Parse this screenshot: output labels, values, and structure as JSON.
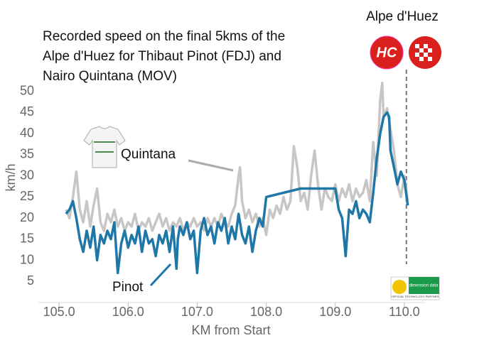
{
  "chart_data": {
    "type": "line",
    "title": [
      "Recorded speed on the final 5kms of the",
      "Alpe d'Huez for Thibaut Pinot (FDJ) and",
      "Nairo Quintana (MOV)"
    ],
    "x_label": "KM from Start",
    "y_label": "km/h",
    "xlim": [
      104.7,
      110.3
    ],
    "ylim": [
      0,
      55
    ],
    "xticks": [
      {
        "value": 105,
        "label": "105.0"
      },
      {
        "value": 106,
        "label": "106.0"
      },
      {
        "value": 107,
        "label": "107.0"
      },
      {
        "value": 108,
        "label": "108.0"
      },
      {
        "value": 109,
        "label": "109.0"
      },
      {
        "value": 110,
        "label": "110.0"
      }
    ],
    "yticks": [
      5,
      10,
      15,
      20,
      25,
      30,
      35,
      40,
      45,
      50
    ],
    "grid": false,
    "summit": {
      "label": "Alpe d'Huez",
      "badge": "HC",
      "x": 110.03
    },
    "logo": [
      "dimension data",
      "OFFICIAL TECHNOLOGY PARTNER"
    ],
    "series": [
      {
        "name": "Quintana",
        "color": "#c8c6c4",
        "x": [
          105.1,
          105.15,
          105.2,
          105.25,
          105.3,
          105.35,
          105.4,
          105.45,
          105.5,
          105.55,
          105.6,
          105.65,
          105.7,
          105.75,
          105.8,
          105.85,
          105.9,
          105.95,
          106.0,
          106.05,
          106.1,
          106.15,
          106.2,
          106.25,
          106.3,
          106.35,
          106.4,
          106.45,
          106.5,
          106.55,
          106.6,
          106.65,
          106.7,
          106.75,
          106.8,
          106.85,
          106.9,
          106.95,
          107.0,
          107.05,
          107.1,
          107.15,
          107.2,
          107.25,
          107.3,
          107.35,
          107.4,
          107.45,
          107.5,
          107.55,
          107.6,
          107.62,
          107.65,
          107.7,
          107.75,
          107.8,
          107.85,
          107.9,
          107.95,
          108.0,
          108.05,
          108.1,
          108.15,
          108.2,
          108.25,
          108.3,
          108.35,
          108.4,
          108.45,
          108.5,
          108.55,
          108.6,
          108.65,
          108.7,
          108.75,
          108.8,
          108.85,
          108.9,
          108.95,
          109.0,
          109.05,
          109.1,
          109.15,
          109.2,
          109.25,
          109.3,
          109.35,
          109.4,
          109.45,
          109.5,
          109.55,
          109.6,
          109.65,
          109.68,
          109.7,
          109.75,
          109.8,
          109.85,
          109.9,
          109.95,
          110.0,
          110.05
        ],
        "values": [
          22,
          20,
          25,
          31,
          22,
          19,
          24,
          18,
          23,
          27,
          19,
          17,
          21,
          19,
          22,
          18,
          20,
          17,
          19,
          18,
          21,
          17,
          19,
          18,
          20,
          17,
          19,
          21,
          18,
          20,
          17,
          19,
          18,
          20,
          17,
          19,
          18,
          20,
          18,
          19,
          17,
          20,
          18,
          20,
          18,
          21,
          19,
          18,
          21,
          23,
          30,
          32,
          24,
          20,
          22,
          19,
          21,
          18,
          20,
          16,
          22,
          20,
          23,
          21,
          25,
          22,
          24,
          37,
          32,
          24,
          26,
          22,
          30,
          36,
          28,
          22,
          27,
          25,
          24,
          28,
          24,
          27,
          25,
          28,
          24,
          27,
          25,
          26,
          29,
          24,
          38,
          30,
          48,
          52,
          44,
          46,
          41,
          36,
          28,
          25,
          30,
          24
        ]
      },
      {
        "name": "Pinot",
        "color": "#1f77a8",
        "x": [
          105.1,
          105.15,
          105.2,
          105.25,
          105.3,
          105.35,
          105.4,
          105.45,
          105.5,
          105.55,
          105.6,
          105.65,
          105.7,
          105.75,
          105.8,
          105.85,
          105.9,
          105.95,
          106.0,
          106.05,
          106.1,
          106.15,
          106.2,
          106.25,
          106.3,
          106.35,
          106.4,
          106.45,
          106.5,
          106.55,
          106.6,
          106.65,
          106.7,
          106.72,
          106.75,
          106.8,
          106.85,
          106.9,
          106.95,
          107.0,
          107.05,
          107.1,
          107.15,
          107.2,
          107.25,
          107.3,
          107.35,
          107.4,
          107.45,
          107.5,
          107.55,
          107.6,
          107.65,
          107.7,
          107.75,
          107.8,
          107.85,
          107.9,
          107.95,
          108.0,
          108.5,
          109.0,
          109.05,
          109.1,
          109.15,
          109.2,
          109.25,
          109.3,
          109.35,
          109.4,
          109.45,
          109.5,
          109.55,
          109.6,
          109.65,
          109.7,
          109.75,
          109.78,
          109.8,
          109.85,
          109.9,
          109.95,
          110.0,
          110.05
        ],
        "values": [
          21,
          22,
          24,
          20,
          15,
          12,
          17,
          13,
          18,
          10,
          16,
          14,
          17,
          15,
          19,
          7,
          14,
          17,
          13,
          16,
          14,
          18,
          12,
          17,
          14,
          15,
          11,
          16,
          14,
          17,
          12,
          18,
          8,
          15,
          18,
          16,
          19,
          15,
          17,
          7,
          17,
          20,
          16,
          18,
          14,
          19,
          17,
          20,
          14,
          18,
          15,
          21,
          16,
          14,
          18,
          12,
          17,
          20,
          18,
          25,
          27,
          27,
          22,
          20,
          11,
          22,
          21,
          24,
          20,
          22,
          21,
          19,
          26,
          34,
          40,
          44,
          45,
          44,
          36,
          32,
          28,
          31,
          29,
          23
        ]
      }
    ]
  }
}
